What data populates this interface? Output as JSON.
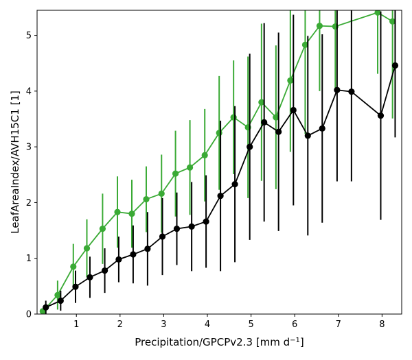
{
  "chart_data": {
    "type": "line",
    "xlabel": "Precipitation/GPCPv2.3 [mm d",
    "xlabel_sup": "−1",
    "xlabel_end": "]",
    "ylabel": "LeafAreaIndex/AVH15C1 [1]",
    "xlim": [
      0.1,
      8.45
    ],
    "ylim": [
      0,
      5.45
    ],
    "xticks": [
      1,
      2,
      3,
      4,
      5,
      6,
      7,
      8
    ],
    "yticks": [
      0,
      1,
      2,
      3,
      4,
      5
    ],
    "xtick_labels": [
      "1",
      "2",
      "3",
      "4",
      "5",
      "6",
      "7",
      "8"
    ],
    "ytick_labels": [
      "0",
      "1",
      "2",
      "3",
      "4",
      "5"
    ],
    "grid": false,
    "series": [
      {
        "color": "#3aaa35",
        "x": [
          0.23,
          0.57,
          0.93,
          1.24,
          1.6,
          1.94,
          2.27,
          2.6,
          2.95,
          3.27,
          3.6,
          3.94,
          4.27,
          4.6,
          4.93,
          5.24,
          5.57,
          5.9,
          6.24,
          6.57,
          6.93,
          7.9,
          8.24
        ],
        "y": [
          0.05,
          0.34,
          0.85,
          1.18,
          1.53,
          1.83,
          1.8,
          2.06,
          2.16,
          2.52,
          2.63,
          2.85,
          3.25,
          3.53,
          3.35,
          3.8,
          3.53,
          4.19,
          4.83,
          5.17,
          5.16,
          5.41,
          5.25
        ],
        "err": [
          0.05,
          0.26,
          0.41,
          0.52,
          0.63,
          0.64,
          0.61,
          0.59,
          0.7,
          0.77,
          0.85,
          0.83,
          1.02,
          1.02,
          1.27,
          1.41,
          1.29,
          1.28,
          1.6,
          1.17,
          1.17,
          1.1,
          1.74
        ]
      },
      {
        "color": "#000000",
        "x": [
          0.3,
          0.64,
          0.98,
          1.31,
          1.65,
          1.97,
          2.3,
          2.63,
          2.97,
          3.3,
          3.64,
          3.97,
          4.3,
          4.63,
          4.97,
          5.3,
          5.63,
          5.97,
          6.3,
          6.63,
          6.97,
          7.3,
          7.97,
          8.3
        ],
        "y": [
          0.12,
          0.24,
          0.49,
          0.66,
          0.78,
          0.98,
          1.07,
          1.17,
          1.39,
          1.53,
          1.57,
          1.66,
          2.12,
          2.33,
          3.0,
          3.44,
          3.27,
          3.66,
          3.2,
          3.33,
          4.02,
          3.99,
          3.56,
          4.46
        ],
        "err": [
          0.12,
          0.18,
          0.29,
          0.37,
          0.4,
          0.41,
          0.52,
          0.66,
          0.69,
          0.65,
          0.8,
          0.83,
          1.35,
          1.4,
          1.67,
          1.78,
          1.78,
          1.71,
          1.79,
          1.69,
          1.64,
          1.61,
          1.87,
          1.29
        ]
      }
    ]
  }
}
